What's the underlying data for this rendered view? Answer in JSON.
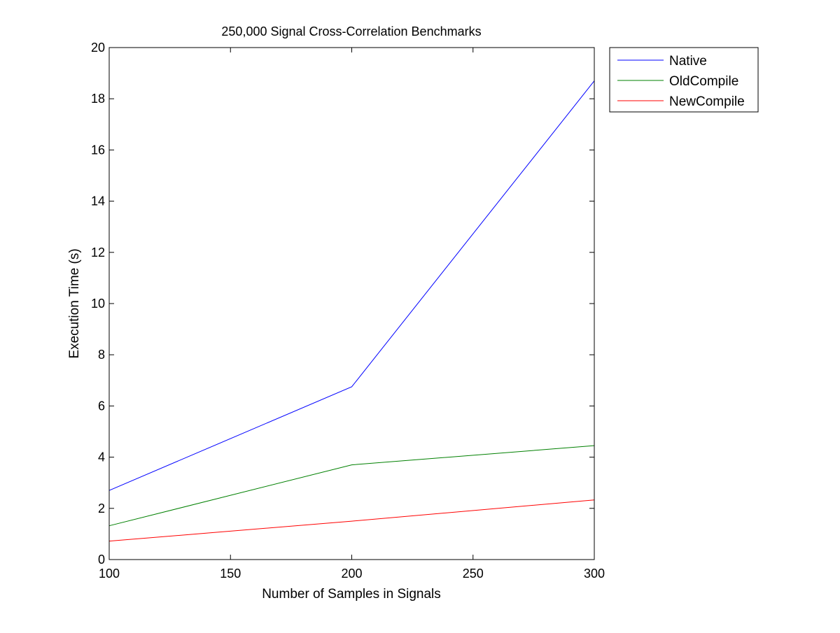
{
  "chart_data": {
    "type": "line",
    "title": "250,000 Signal Cross-Correlation Benchmarks",
    "xlabel": "Number of Samples in Signals",
    "ylabel": "Execution Time (s)",
    "xlim": [
      100,
      300
    ],
    "ylim": [
      0,
      20
    ],
    "xticks": [
      100,
      150,
      200,
      250,
      300
    ],
    "yticks": [
      0,
      2,
      4,
      6,
      8,
      10,
      12,
      14,
      16,
      18,
      20
    ],
    "grid": false,
    "legend_position": "outside-top-right",
    "x": [
      100,
      200,
      300
    ],
    "series": [
      {
        "name": "Native",
        "color": "#0000ff",
        "values": [
          2.7,
          6.75,
          18.7
        ]
      },
      {
        "name": "OldCompile",
        "color": "#008000",
        "values": [
          1.32,
          3.7,
          4.45
        ]
      },
      {
        "name": "NewCompile",
        "color": "#ff0000",
        "values": [
          0.72,
          1.5,
          2.33
        ]
      }
    ]
  }
}
